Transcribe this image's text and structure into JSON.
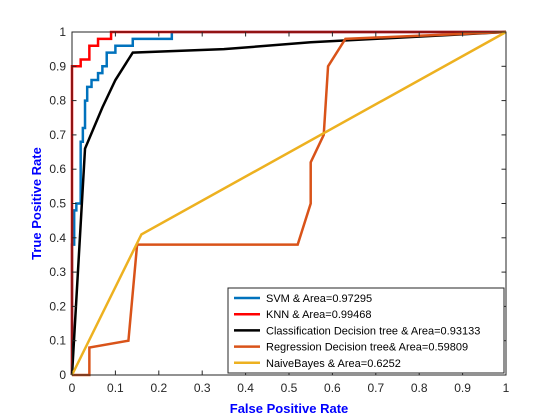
{
  "chart_data": {
    "type": "line",
    "title": "",
    "xlabel": "False Positive Rate",
    "ylabel": "True Positive Rate",
    "xlim": [
      0,
      1
    ],
    "ylim": [
      0,
      1
    ],
    "xticks": [
      "0",
      "0.1",
      "0.2",
      "0.3",
      "0.4",
      "0.5",
      "0.6",
      "0.7",
      "0.8",
      "0.9",
      "1"
    ],
    "yticks": [
      "0",
      "0.1",
      "0.2",
      "0.3",
      "0.4",
      "0.5",
      "0.6",
      "0.7",
      "0.8",
      "0.9",
      "1"
    ],
    "grid": false,
    "legend_position": "bottom-right",
    "series": [
      {
        "name": "SVM & Area=0.97295",
        "color": "#0072bd",
        "points": [
          [
            0,
            0
          ],
          [
            0,
            0.38
          ],
          [
            0.005,
            0.38
          ],
          [
            0.005,
            0.48
          ],
          [
            0.01,
            0.48
          ],
          [
            0.01,
            0.5
          ],
          [
            0.02,
            0.5
          ],
          [
            0.02,
            0.68
          ],
          [
            0.025,
            0.68
          ],
          [
            0.025,
            0.72
          ],
          [
            0.03,
            0.72
          ],
          [
            0.03,
            0.8
          ],
          [
            0.035,
            0.8
          ],
          [
            0.035,
            0.84
          ],
          [
            0.045,
            0.84
          ],
          [
            0.045,
            0.86
          ],
          [
            0.06,
            0.86
          ],
          [
            0.06,
            0.88
          ],
          [
            0.07,
            0.88
          ],
          [
            0.07,
            0.9
          ],
          [
            0.08,
            0.9
          ],
          [
            0.08,
            0.94
          ],
          [
            0.1,
            0.94
          ],
          [
            0.1,
            0.96
          ],
          [
            0.14,
            0.96
          ],
          [
            0.14,
            0.98
          ],
          [
            0.18,
            0.98
          ],
          [
            0.18,
            0.98
          ],
          [
            0.23,
            0.98
          ],
          [
            0.23,
            1
          ],
          [
            1,
            1
          ]
        ]
      },
      {
        "name": "KNN & Area=0.99468",
        "color": "#ff0000",
        "points": [
          [
            0,
            0
          ],
          [
            0,
            0.9
          ],
          [
            0.02,
            0.9
          ],
          [
            0.02,
            0.92
          ],
          [
            0.04,
            0.92
          ],
          [
            0.04,
            0.96
          ],
          [
            0.06,
            0.96
          ],
          [
            0.06,
            0.98
          ],
          [
            0.09,
            0.98
          ],
          [
            0.09,
            1
          ],
          [
            1,
            1
          ]
        ]
      },
      {
        "name": "Classification Decision tree & Area=0.93133",
        "color": "#000000",
        "points": [
          [
            0,
            0
          ],
          [
            0.03,
            0.66
          ],
          [
            0.07,
            0.78
          ],
          [
            0.1,
            0.86
          ],
          [
            0.14,
            0.94
          ],
          [
            0.35,
            0.95
          ],
          [
            0.55,
            0.97
          ],
          [
            1,
            1
          ]
        ]
      },
      {
        "name": "Regression Decision tree& Area=0.59809",
        "color": "#d95319",
        "points": [
          [
            0,
            0
          ],
          [
            0.04,
            0
          ],
          [
            0.04,
            0.08
          ],
          [
            0.13,
            0.1
          ],
          [
            0.15,
            0.38
          ],
          [
            0.52,
            0.38
          ],
          [
            0.55,
            0.5
          ],
          [
            0.55,
            0.62
          ],
          [
            0.58,
            0.7
          ],
          [
            0.59,
            0.9
          ],
          [
            0.63,
            0.98
          ],
          [
            1,
            1
          ]
        ]
      },
      {
        "name": "NaiveBayes & Area=0.6252",
        "color": "#edb120",
        "points": [
          [
            0,
            0
          ],
          [
            0.16,
            0.41
          ],
          [
            1,
            1
          ]
        ]
      }
    ]
  }
}
